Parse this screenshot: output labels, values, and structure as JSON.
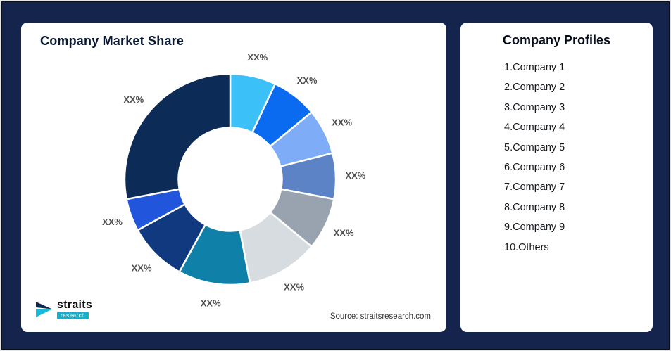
{
  "page": {
    "background": "#15244D"
  },
  "chart_data": {
    "type": "pie",
    "variant": "donut",
    "title": "Company Market Share",
    "source_note": "Source: straitsresearch.com",
    "legend": "none",
    "donut_hole_ratio": 0.49,
    "categories": [
      "Company 1",
      "Company 2",
      "Company 3",
      "Company 4",
      "Company 5",
      "Company 6",
      "Company 7",
      "Company 8",
      "Company 9",
      "Others"
    ],
    "values_pct_estimated": [
      7,
      7,
      7,
      7,
      8,
      11,
      11,
      9,
      5,
      28
    ],
    "slice_labels": [
      "XX%",
      "XX%",
      "XX%",
      "XX%",
      "XX%",
      "XX%",
      "XX%",
      "XX%",
      "XX%",
      "XX%"
    ],
    "colors": [
      "#3BC0F8",
      "#0A6AF0",
      "#7FACF6",
      "#5B83C5",
      "#99A3AF",
      "#D7DCE1",
      "#0F80A8",
      "#11397F",
      "#2155DB",
      "#0D2B57"
    ],
    "start_angle_deg": -90,
    "direction": "clockwise"
  },
  "right_panel": {
    "title": "Company Profiles",
    "items": [
      "1.Company 1",
      "2.Company 2",
      "3.Company 3",
      "4.Company 4",
      "5.Company 5",
      "6.Company 6",
      "7.Company 7",
      "8.Company 8",
      "9.Company 9",
      "10.Others"
    ]
  },
  "logo": {
    "name": "straits",
    "sub": "research"
  }
}
